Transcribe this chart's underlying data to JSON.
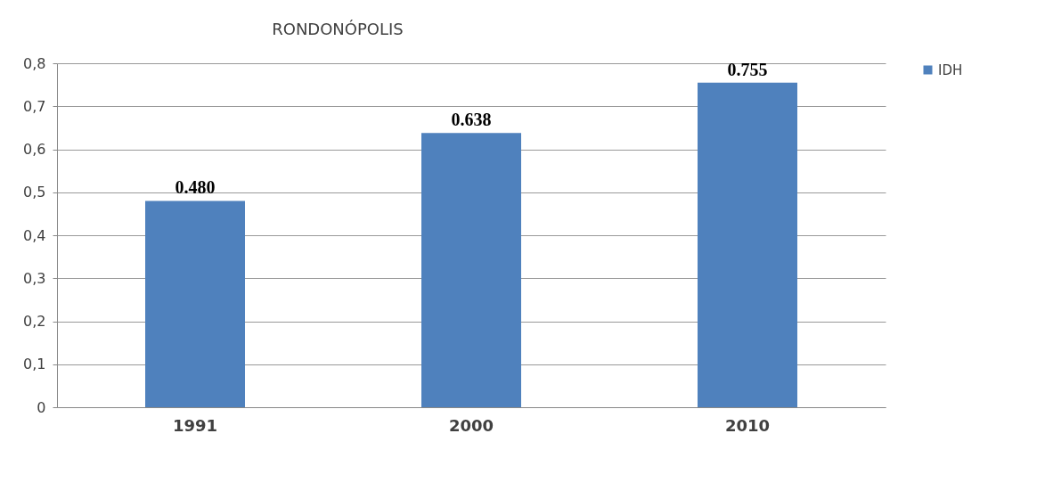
{
  "chart_data": {
    "type": "bar",
    "title": "RONDONÓPOLIS",
    "categories": [
      "1991",
      "2000",
      "2010"
    ],
    "series": [
      {
        "name": "IDH",
        "color": "#4f81bd",
        "values": [
          0.48,
          0.638,
          0.755
        ],
        "value_labels": [
          "0.480",
          "0.638",
          "0.755"
        ]
      }
    ],
    "ylim": [
      0,
      0.8
    ],
    "yticks": [
      0,
      {
        "value": 0.1,
        "label": "0,1"
      },
      {
        "value": 0.2,
        "label": "0,2"
      },
      {
        "value": 0.3,
        "label": "0,3"
      },
      {
        "value": 0.4,
        "label": "0,4"
      },
      {
        "value": 0.5,
        "label": "0,5"
      },
      {
        "value": 0.6,
        "label": "0,6"
      },
      {
        "value": 0.7,
        "label": "0,7"
      },
      {
        "value": 0.8,
        "label": "0,8"
      }
    ],
    "grid": "y",
    "legend": "right"
  }
}
